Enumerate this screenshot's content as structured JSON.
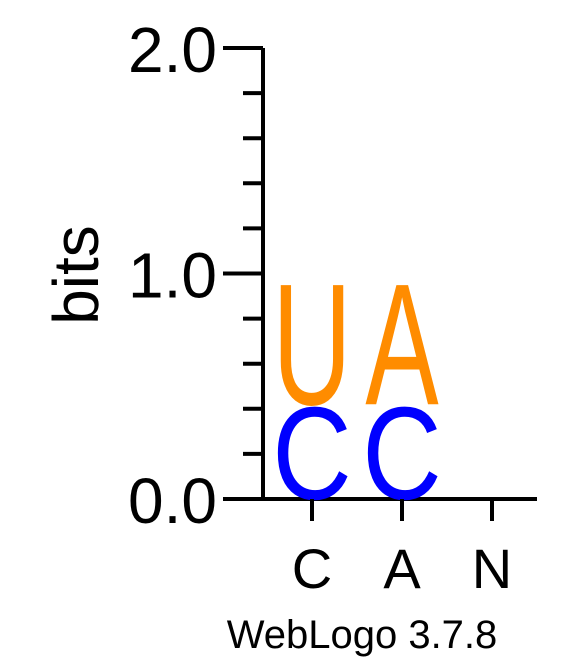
{
  "chart_data": {
    "type": "sequence-logo",
    "ylabel": "bits",
    "ylim": [
      0,
      2.0
    ],
    "y_ticks": [
      "0.0",
      "1.0",
      "2.0"
    ],
    "minor_tick_step": 0.2,
    "positions": [
      {
        "label": "C",
        "stack": [
          {
            "letter": "C",
            "bits": 0.42,
            "color": "#0000ff"
          },
          {
            "letter": "U",
            "bits": 0.55,
            "color": "#ff8c00"
          }
        ]
      },
      {
        "label": "A",
        "stack": [
          {
            "letter": "C",
            "bits": 0.42,
            "color": "#0000ff"
          },
          {
            "letter": "A",
            "bits": 0.55,
            "color": "#ff8c00"
          }
        ]
      },
      {
        "label": "N",
        "stack": []
      }
    ]
  },
  "footer": {
    "credit": "WebLogo 3.7.8"
  }
}
